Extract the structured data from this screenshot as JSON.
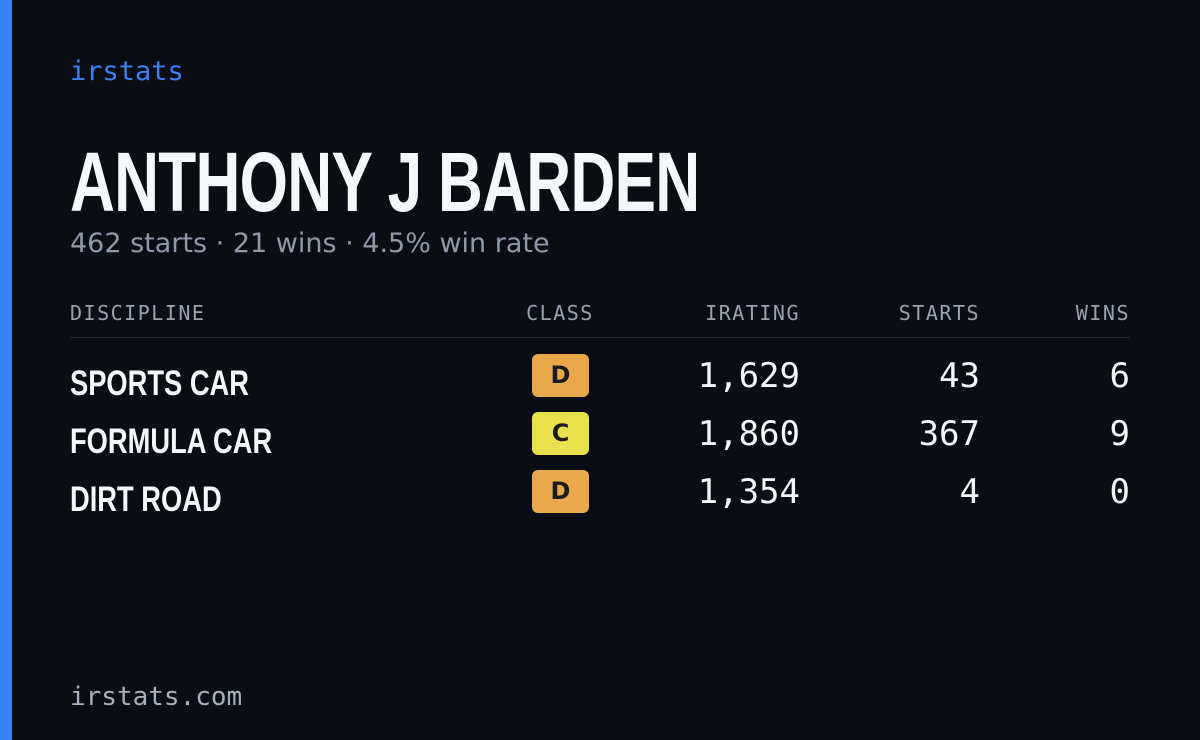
{
  "brand": "irstats",
  "title": "ANTHONY J BARDEN",
  "subtitle": "462 starts · 21 wins · 4.5% win rate",
  "table": {
    "headers": [
      "DISCIPLINE",
      "CLASS",
      "IRATING",
      "STARTS",
      "WINS"
    ],
    "rows": [
      {
        "discipline": "SPORTS CAR",
        "class": "D",
        "class_color": "#e9a84c",
        "irating": "1,629",
        "starts": "43",
        "wins": "6"
      },
      {
        "discipline": "FORMULA CAR",
        "class": "C",
        "class_color": "#e8e04c",
        "irating": "1,860",
        "starts": "367",
        "wins": "9"
      },
      {
        "discipline": "DIRT ROAD",
        "class": "D",
        "class_color": "#e9a84c",
        "irating": "1,354",
        "starts": "4",
        "wins": "0"
      }
    ]
  },
  "footer": "irstats.com"
}
